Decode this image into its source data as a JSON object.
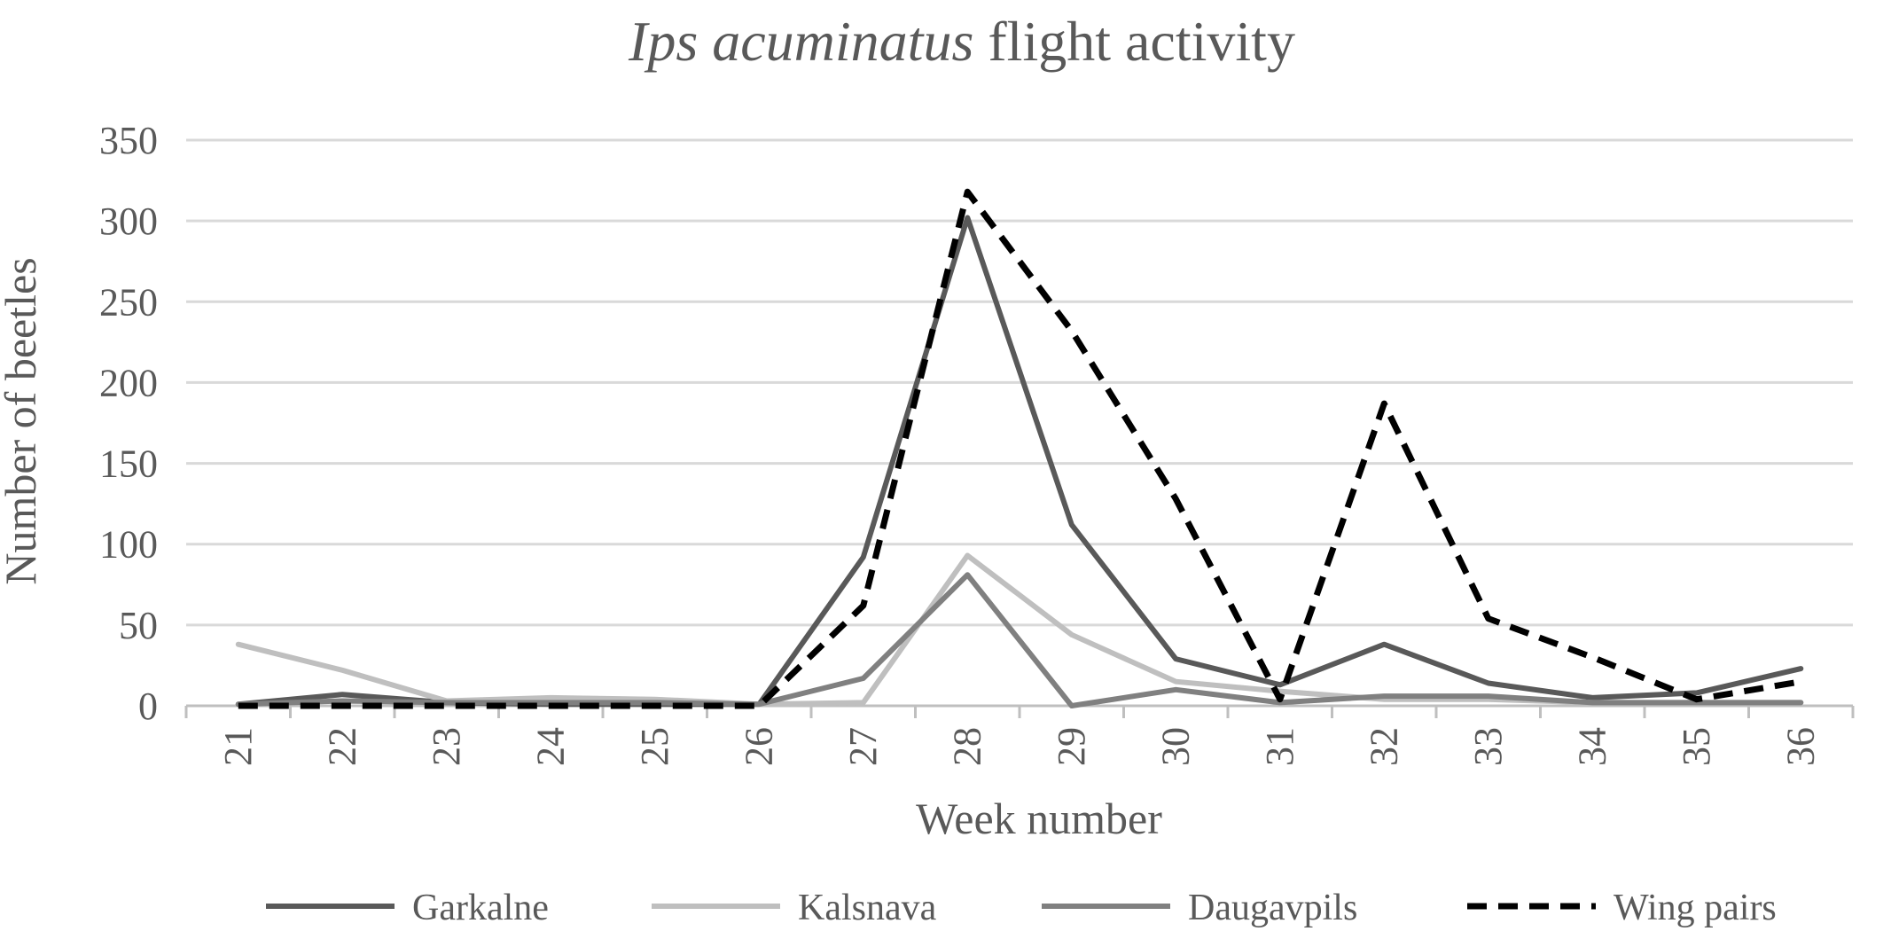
{
  "chart_data": {
    "type": "line",
    "title": {
      "italic": "Ips acuminatus",
      "rest": " flight activity"
    },
    "xlabel": "Week number",
    "ylabel": "Number of beetles",
    "ylim": [
      0,
      350
    ],
    "yticks": [
      0,
      50,
      100,
      150,
      200,
      250,
      300,
      350
    ],
    "grid": true,
    "legend_position": "bottom",
    "categories": [
      "21",
      "22",
      "23",
      "24",
      "25",
      "26",
      "27",
      "28",
      "29",
      "30",
      "31",
      "32",
      "33",
      "34",
      "35",
      "36"
    ],
    "series": [
      {
        "name": "Garkalne",
        "color": "#595959",
        "dash": "solid",
        "values": [
          1,
          7,
          2,
          1,
          1,
          1,
          92,
          302,
          112,
          29,
          13,
          38,
          14,
          5,
          8,
          23
        ]
      },
      {
        "name": "Kalsnava",
        "color": "#bfbfbf",
        "dash": "solid",
        "values": [
          38,
          22,
          3,
          5,
          4,
          1,
          2,
          93,
          44,
          15,
          9,
          4,
          4,
          2,
          2,
          2
        ]
      },
      {
        "name": "Daugavpils",
        "color": "#808080",
        "dash": "solid",
        "values": [
          1,
          3,
          2,
          2,
          2,
          1,
          17,
          81,
          0,
          10,
          2,
          6,
          6,
          2,
          2,
          2
        ]
      },
      {
        "name": "Wing pairs",
        "color": "#000000",
        "dash": "dashed",
        "values": [
          0,
          0,
          0,
          0,
          0,
          0,
          62,
          318,
          232,
          128,
          4,
          187,
          54,
          30,
          4,
          15
        ]
      }
    ]
  }
}
